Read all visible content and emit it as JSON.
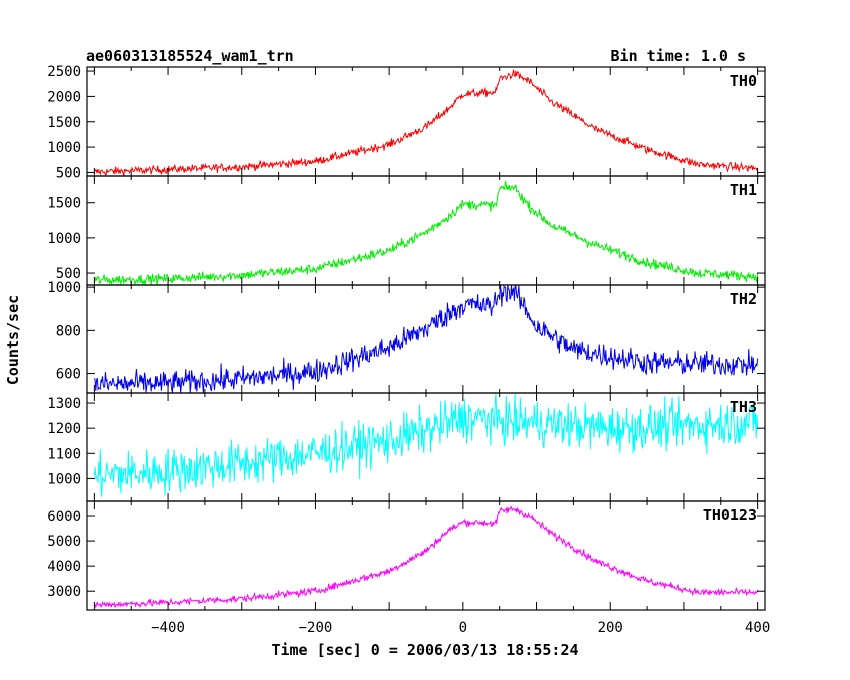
{
  "title_left": "ae060313185524_wam1_trn",
  "title_right": "Bin time: 1.0 s",
  "xlabel": "Time [sec] 0 = 2006/03/13 18:55:24",
  "ylabel": "Counts/sec",
  "chart_data": {
    "type": "line",
    "x": {
      "range": [
        -510,
        410
      ],
      "ticks": [
        -400,
        -200,
        0,
        200,
        400
      ],
      "tick_labels": [
        "−400",
        "−200",
        "0",
        "200",
        "400"
      ],
      "bin_s": 1.0
    },
    "panels": [
      {
        "name": "TH0",
        "color": "#ff0000",
        "ylim": [
          430,
          2580
        ],
        "yticks": [
          500,
          1000,
          1500,
          2000,
          2500
        ],
        "noise": 40,
        "points": [
          [
            -500,
            510
          ],
          [
            -400,
            560
          ],
          [
            -300,
            610
          ],
          [
            -200,
            720
          ],
          [
            -100,
            1050
          ],
          [
            -50,
            1400
          ],
          [
            -20,
            1750
          ],
          [
            0,
            2050
          ],
          [
            45,
            2080
          ],
          [
            50,
            2350
          ],
          [
            70,
            2450
          ],
          [
            90,
            2300
          ],
          [
            120,
            1900
          ],
          [
            180,
            1350
          ],
          [
            250,
            950
          ],
          [
            320,
            660
          ],
          [
            400,
            580
          ]
        ]
      },
      {
        "name": "TH1",
        "color": "#00ee00",
        "ylim": [
          330,
          1880
        ],
        "yticks": [
          500,
          1000,
          1500
        ],
        "noise": 35,
        "points": [
          [
            -500,
            400
          ],
          [
            -400,
            420
          ],
          [
            -300,
            470
          ],
          [
            -200,
            560
          ],
          [
            -100,
            820
          ],
          [
            -50,
            1080
          ],
          [
            -20,
            1300
          ],
          [
            0,
            1480
          ],
          [
            45,
            1460
          ],
          [
            50,
            1700
          ],
          [
            70,
            1720
          ],
          [
            90,
            1450
          ],
          [
            120,
            1180
          ],
          [
            180,
            900
          ],
          [
            250,
            650
          ],
          [
            320,
            500
          ],
          [
            400,
            450
          ]
        ]
      },
      {
        "name": "TH2",
        "color": "#0000ee",
        "ylim": [
          510,
          1010
        ],
        "yticks": [
          600,
          800,
          1000
        ],
        "noise": 28,
        "points": [
          [
            -500,
            550
          ],
          [
            -400,
            555
          ],
          [
            -300,
            575
          ],
          [
            -200,
            610
          ],
          [
            -100,
            720
          ],
          [
            -50,
            810
          ],
          [
            0,
            920
          ],
          [
            40,
            910
          ],
          [
            55,
            990
          ],
          [
            70,
            980
          ],
          [
            100,
            820
          ],
          [
            150,
            710
          ],
          [
            250,
            650
          ],
          [
            400,
            640
          ]
        ]
      },
      {
        "name": "TH3",
        "color": "#00ffff",
        "ylim": [
          910,
          1340
        ],
        "yticks": [
          1000,
          1100,
          1200,
          1300
        ],
        "noise": 45,
        "points": [
          [
            -500,
            1010
          ],
          [
            -400,
            1030
          ],
          [
            -300,
            1060
          ],
          [
            -200,
            1100
          ],
          [
            -100,
            1150
          ],
          [
            -50,
            1190
          ],
          [
            0,
            1240
          ],
          [
            100,
            1220
          ],
          [
            200,
            1200
          ],
          [
            300,
            1210
          ],
          [
            400,
            1225
          ]
        ]
      },
      {
        "name": "TH0123",
        "color": "#ff00ff",
        "ylim": [
          2250,
          6600
        ],
        "yticks": [
          3000,
          4000,
          5000,
          6000
        ],
        "noise": 70,
        "points": [
          [
            -500,
            2450
          ],
          [
            -400,
            2550
          ],
          [
            -300,
            2700
          ],
          [
            -200,
            3000
          ],
          [
            -100,
            3800
          ],
          [
            -50,
            4600
          ],
          [
            -20,
            5400
          ],
          [
            0,
            5750
          ],
          [
            45,
            5700
          ],
          [
            50,
            6200
          ],
          [
            70,
            6300
          ],
          [
            90,
            6000
          ],
          [
            120,
            5300
          ],
          [
            180,
            4200
          ],
          [
            250,
            3400
          ],
          [
            320,
            2950
          ],
          [
            400,
            2950
          ]
        ]
      }
    ]
  }
}
